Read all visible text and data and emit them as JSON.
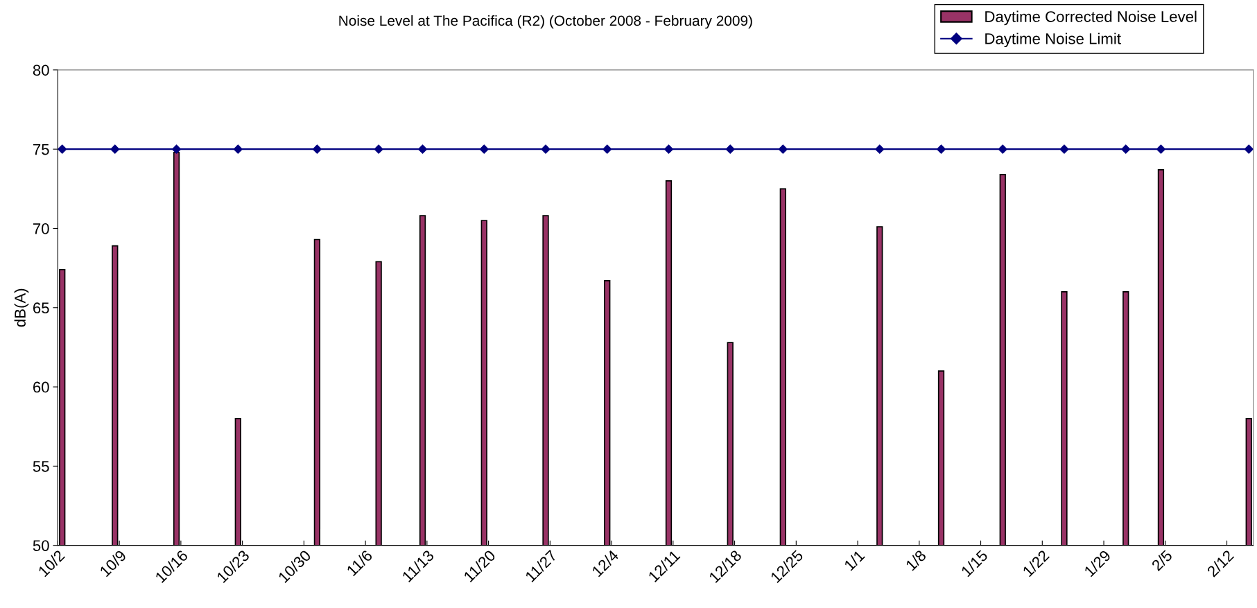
{
  "chart_data": {
    "type": "bar",
    "title": "Noise Level at The Pacifica (R2) (October 2008 - February 2009)",
    "ylabel": "dB(A)",
    "x": [
      "2008-10-02",
      "2008-10-08",
      "2008-10-15",
      "2008-10-22",
      "2008-10-31",
      "2008-11-07",
      "2008-11-12",
      "2008-11-19",
      "2008-11-26",
      "2008-12-03",
      "2008-12-10",
      "2008-12-17",
      "2008-12-23",
      "2009-01-03",
      "2009-01-10",
      "2009-01-17",
      "2009-01-24",
      "2009-01-31",
      "2009-02-04",
      "2009-02-14"
    ],
    "series": [
      {
        "name": "Daytime Corrected Noise Level",
        "color": "#993366",
        "values": [
          67.4,
          68.9,
          74.8,
          58.0,
          69.3,
          67.9,
          70.8,
          70.5,
          70.8,
          66.7,
          73.0,
          62.8,
          72.5,
          70.1,
          61.0,
          73.4,
          66.0,
          66.0,
          73.7,
          58.0
        ]
      },
      {
        "name": "Daytime Noise Limit",
        "type": "line",
        "color": "#000080",
        "marker": "diamond",
        "values": [
          75,
          75,
          75,
          75,
          75,
          75,
          75,
          75,
          75,
          75,
          75,
          75,
          75,
          75,
          75,
          75,
          75,
          75,
          75,
          75
        ]
      }
    ],
    "xlim": [
      "2008-10-02",
      "2009-02-15"
    ],
    "xticks": [
      {
        "value": "2008-10-02",
        "label": "10/2"
      },
      {
        "value": "2008-10-09",
        "label": "10/9"
      },
      {
        "value": "2008-10-16",
        "label": "10/16"
      },
      {
        "value": "2008-10-23",
        "label": "10/23"
      },
      {
        "value": "2008-10-30",
        "label": "10/30"
      },
      {
        "value": "2008-11-06",
        "label": "11/6"
      },
      {
        "value": "2008-11-13",
        "label": "11/13"
      },
      {
        "value": "2008-11-20",
        "label": "11/20"
      },
      {
        "value": "2008-11-27",
        "label": "11/27"
      },
      {
        "value": "2008-12-04",
        "label": "12/4"
      },
      {
        "value": "2008-12-11",
        "label": "12/11"
      },
      {
        "value": "2008-12-18",
        "label": "12/18"
      },
      {
        "value": "2008-12-25",
        "label": "12/25"
      },
      {
        "value": "2009-01-01",
        "label": "1/1"
      },
      {
        "value": "2009-01-08",
        "label": "1/8"
      },
      {
        "value": "2009-01-15",
        "label": "1/15"
      },
      {
        "value": "2009-01-22",
        "label": "1/22"
      },
      {
        "value": "2009-01-29",
        "label": "1/29"
      },
      {
        "value": "2009-02-05",
        "label": "2/5"
      },
      {
        "value": "2009-02-12",
        "label": "2/12"
      }
    ],
    "ylim": [
      50,
      80
    ],
    "yticks": [
      50,
      55,
      60,
      65,
      70,
      75,
      80
    ],
    "grid": false,
    "legend": "top right"
  }
}
